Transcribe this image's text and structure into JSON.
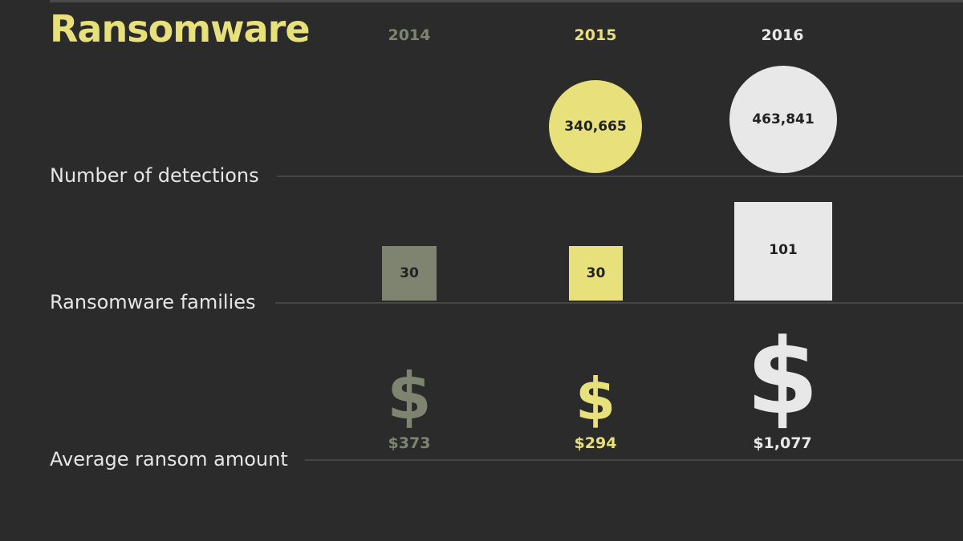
{
  "title": "Ransomware",
  "colors": {
    "background": "#2a2b2a",
    "2014": "#7f8470",
    "2015": "#e8e07a",
    "2016": "#e8e8e8"
  },
  "years": [
    "2014",
    "2015",
    "2016"
  ],
  "rows": {
    "detections": "Number of detections",
    "families": "Ransomware families",
    "ransom": "Average ransom amount"
  },
  "dollar_glyph": "$",
  "chart_data": {
    "type": "table",
    "title": "Ransomware",
    "columns": [
      "2014",
      "2015",
      "2016"
    ],
    "rows": [
      {
        "label": "Number of detections",
        "values": [
          null,
          340665
        ],
        "labels": [
          "",
          "340,665",
          "463,841"
        ],
        "values_2016": 463841
      },
      {
        "label": "Ransomware families",
        "values": [
          30,
          30,
          101
        ],
        "labels": [
          "30",
          "30",
          "101"
        ]
      },
      {
        "label": "Average ransom amount",
        "values": [
          373,
          294,
          1077
        ],
        "labels": [
          "$373",
          "$294",
          "$1,077"
        ]
      }
    ]
  }
}
